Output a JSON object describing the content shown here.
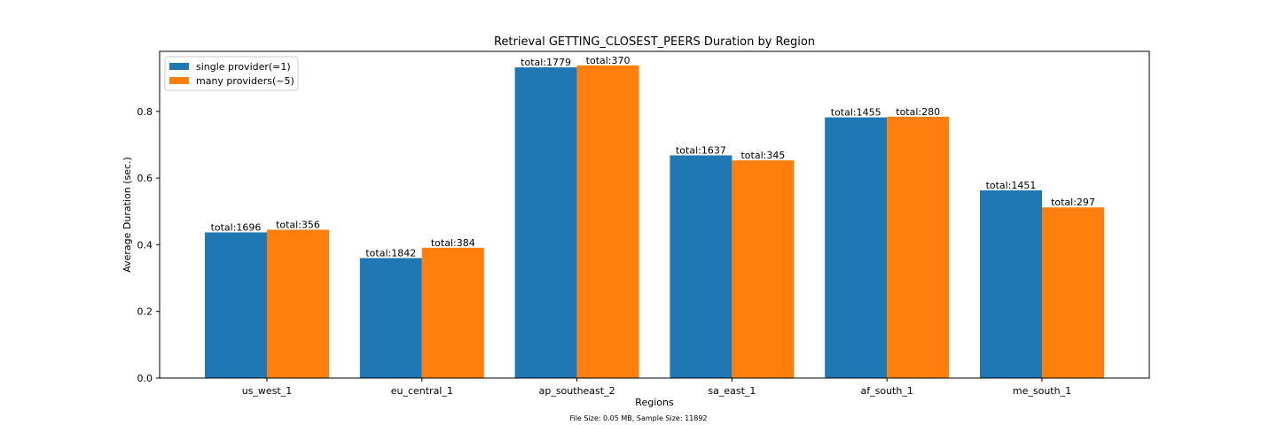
{
  "chart_data": {
    "type": "bar",
    "title": "Retrieval GETTING_CLOSEST_PEERS Duration by Region",
    "xlabel": "Regions",
    "ylabel": "Average Duration (sec.)",
    "footnote": "File Size: 0.05 MB, Sample Size: 11892",
    "categories": [
      "us_west_1",
      "eu_central_1",
      "ap_southeast_2",
      "sa_east_1",
      "af_south_1",
      "me_south_1"
    ],
    "yticks": [
      "0.0",
      "0.2",
      "0.4",
      "0.6",
      "0.8"
    ],
    "ylim": [
      0,
      0.98
    ],
    "grid": false,
    "legend_position": "top-left",
    "series": [
      {
        "name": "single provider(=1)",
        "color": "#1f77b4",
        "values": [
          0.437,
          0.36,
          0.932,
          0.668,
          0.782,
          0.563
        ],
        "labels": [
          "total:1696",
          "total:1842",
          "total:1779",
          "total:1637",
          "total:1455",
          "total:1451"
        ]
      },
      {
        "name": "many providers(~5)",
        "color": "#ff7f0e",
        "values": [
          0.445,
          0.391,
          0.938,
          0.653,
          0.784,
          0.512
        ],
        "labels": [
          "total:356",
          "total:384",
          "total:370",
          "total:345",
          "total:280",
          "total:297"
        ]
      }
    ]
  }
}
